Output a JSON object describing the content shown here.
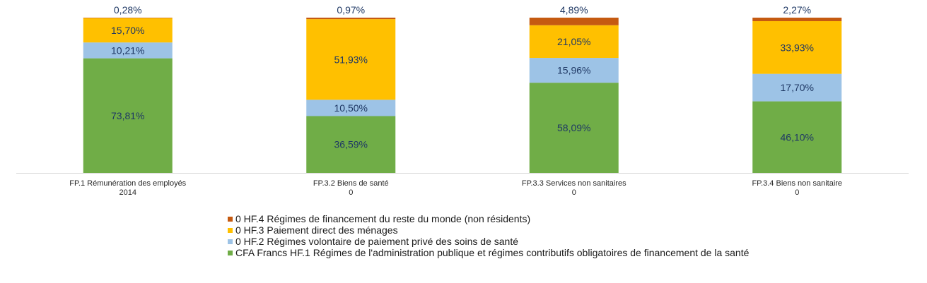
{
  "chart_data": {
    "type": "bar",
    "stacked": true,
    "normalized": true,
    "categories": [
      [
        "FP.1 Rémunération des employés",
        "2014"
      ],
      [
        "FP.3.2 Biens de santé",
        "0"
      ],
      [
        "FP.3.3 Services non sanitaires",
        "0"
      ],
      [
        "FP.3.4 Biens non sanitaire",
        "0"
      ]
    ],
    "series": [
      {
        "name": "CFA Francs HF.1 Régimes de l'administration publique et régimes contributifs obligatoires de financement de la santé",
        "color": "#70ad47",
        "values": [
          73.81,
          36.59,
          58.09,
          46.1
        ],
        "labels": [
          "73,81%",
          "36,59%",
          "58,09%",
          "46,10%"
        ]
      },
      {
        "name": "0 HF.2 Régimes volontaire de paiement privé des soins de santé",
        "color": "#9dc3e6",
        "values": [
          10.21,
          10.5,
          15.96,
          17.7
        ],
        "labels": [
          "10,21%",
          "10,50%",
          "15,96%",
          "17,70%"
        ]
      },
      {
        "name": "0 HF.3 Paiement direct des ménages",
        "color": "#ffc000",
        "values": [
          15.7,
          51.93,
          21.05,
          33.93
        ],
        "labels": [
          "15,70%",
          "51,93%",
          "21,05%",
          "33,93%"
        ]
      },
      {
        "name": "0 HF.4 Régimes de financement du reste du monde (non résidents)",
        "color": "#c55a11",
        "values": [
          0.28,
          0.97,
          4.89,
          2.27
        ],
        "labels": [
          "0,28%",
          "0,97%",
          "4,89%",
          "2,27%"
        ]
      }
    ],
    "legend_position": "bottom",
    "legend_order": [
      3,
      2,
      1,
      0
    ],
    "grid": false,
    "label_color": "#1f3864"
  }
}
